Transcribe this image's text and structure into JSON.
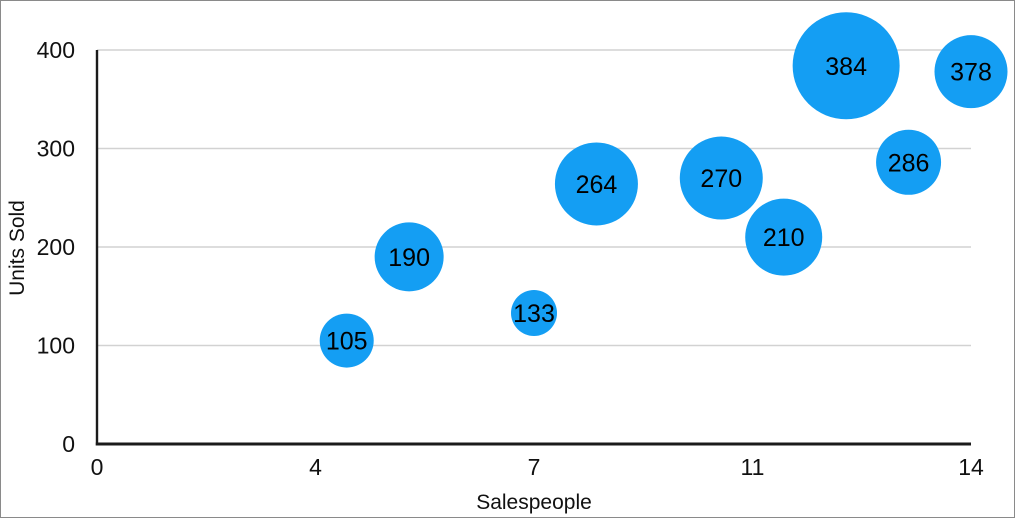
{
  "chart_data": {
    "type": "scatter",
    "variant": "bubble",
    "title": "",
    "xlabel": "Salespeople",
    "ylabel": "Units Sold",
    "xlim": [
      0,
      14
    ],
    "ylim": [
      0,
      400
    ],
    "grid": "horizontal-only",
    "legend": "none",
    "x_ticks": [
      {
        "pos": 0,
        "label": "0"
      },
      {
        "pos": 3.5,
        "label": "4"
      },
      {
        "pos": 7,
        "label": "7"
      },
      {
        "pos": 10.5,
        "label": "11"
      },
      {
        "pos": 14,
        "label": "14"
      }
    ],
    "y_ticks": [
      {
        "value": 0,
        "label": "0"
      },
      {
        "value": 100,
        "label": "100"
      },
      {
        "value": 200,
        "label": "200"
      },
      {
        "value": 300,
        "label": "300"
      },
      {
        "value": 400,
        "label": "400"
      }
    ],
    "points": [
      {
        "x": 4,
        "y": 105,
        "label": "105",
        "radius_px": 27
      },
      {
        "x": 5,
        "y": 190,
        "label": "190",
        "radius_px": 34.5
      },
      {
        "x": 7,
        "y": 133,
        "label": "133",
        "radius_px": 23
      },
      {
        "x": 8,
        "y": 264,
        "label": "264",
        "radius_px": 41.5
      },
      {
        "x": 10,
        "y": 270,
        "label": "270",
        "radius_px": 41.5
      },
      {
        "x": 11,
        "y": 210,
        "label": "210",
        "radius_px": 38.5
      },
      {
        "x": 12,
        "y": 384,
        "label": "384",
        "radius_px": 53.5
      },
      {
        "x": 13,
        "y": 286,
        "label": "286",
        "radius_px": 32.5
      },
      {
        "x": 14,
        "y": 378,
        "label": "378",
        "radius_px": 36.5
      }
    ]
  },
  "colors": {
    "bubble": "#149EF3",
    "bubble_label": "#000000",
    "axis_line": "#1b1b1b",
    "gridline": "#d2d2d2",
    "tick_text": "#111111",
    "frame_border": "#8a8a8a",
    "background": "#ffffff"
  }
}
